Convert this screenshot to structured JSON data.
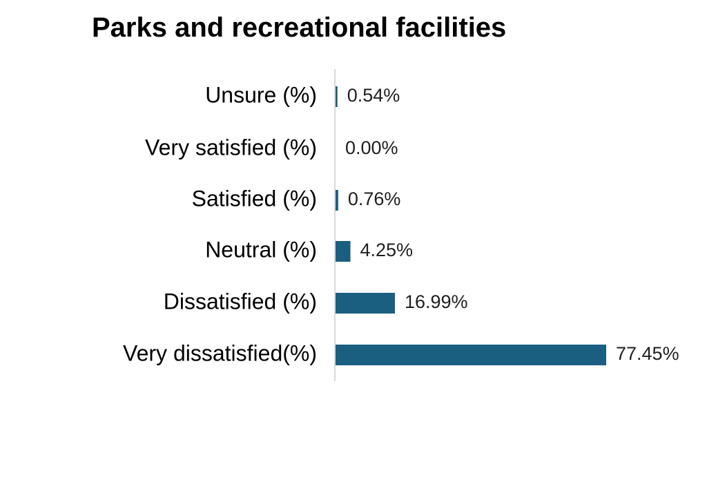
{
  "chart_data": {
    "type": "bar",
    "orientation": "horizontal",
    "title": "Parks and recreational facilities",
    "xlabel": "",
    "ylabel": "",
    "categories": [
      "Unsure (%)",
      "Very satisfied (%)",
      "Satisfied (%)",
      "Neutral (%)",
      "Dissatisfied (%)",
      "Very dissatisfied(%)"
    ],
    "values": [
      0.54,
      0.0,
      0.76,
      4.25,
      16.99,
      77.45
    ],
    "data_labels": [
      "0.54%",
      "0.00%",
      "0.76%",
      "4.25%",
      "16.99%",
      "77.45%"
    ],
    "xlim": [
      0,
      77.45
    ],
    "grid": false,
    "legend": "none",
    "bar_color": "#1a5e80",
    "axis_color": "#d9d9d9"
  }
}
